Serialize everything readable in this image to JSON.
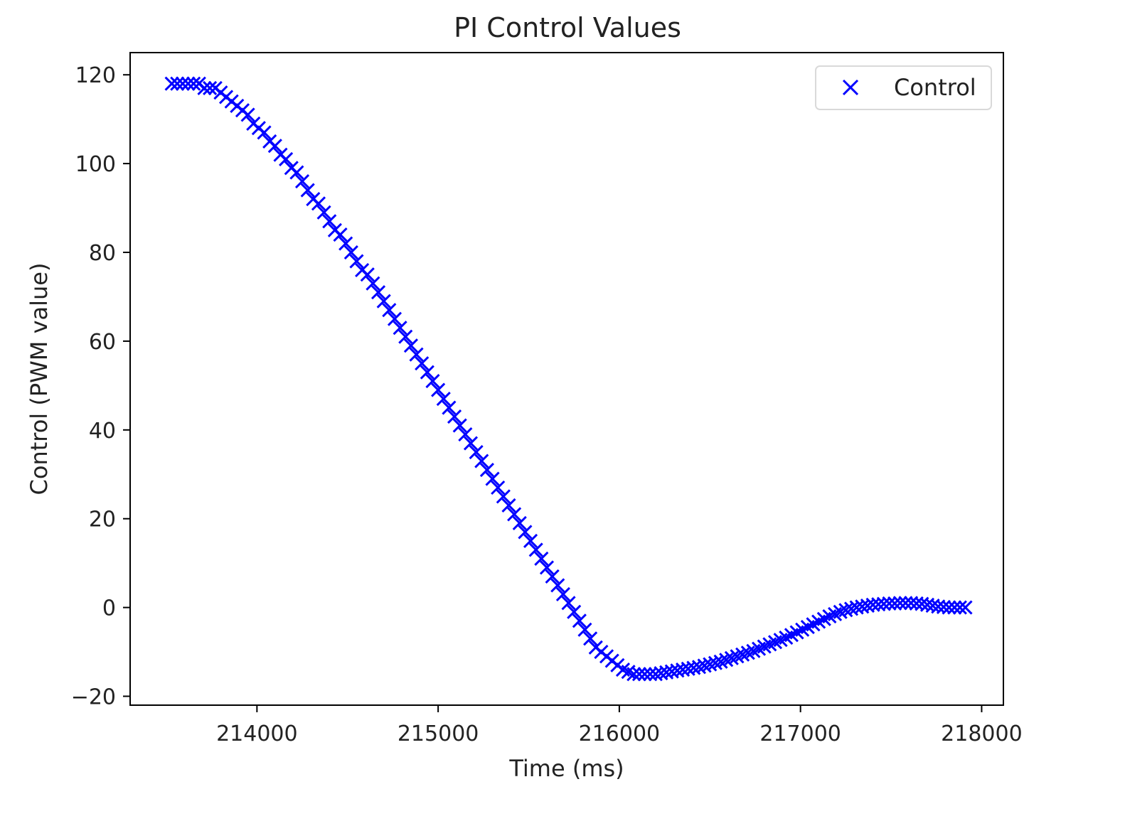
{
  "chart_data": {
    "type": "scatter",
    "title": "PI Control Values",
    "xlabel": "Time (ms)",
    "ylabel": "Control (PWM value)",
    "xlim": [
      213300,
      218120
    ],
    "ylim": [
      -22,
      125
    ],
    "x_ticks": [
      214000,
      215000,
      216000,
      217000,
      218000
    ],
    "y_ticks": [
      -20,
      0,
      20,
      40,
      60,
      80,
      100,
      120
    ],
    "x_tick_labels": [
      "214000",
      "215000",
      "216000",
      "217000",
      "218000"
    ],
    "y_tick_labels": [
      "−20",
      "0",
      "20",
      "40",
      "60",
      "80",
      "100",
      "120"
    ],
    "grid": false,
    "legend_position": "upper right",
    "series": [
      {
        "name": "Control",
        "marker": "x",
        "color": "#0000ff",
        "x": [
          213530,
          213560,
          213590,
          213620,
          213650,
          213680,
          213710,
          213740,
          213770,
          213800,
          213830,
          213860,
          213890,
          213920,
          213950,
          213980,
          214010,
          214040,
          214070,
          214100,
          214130,
          214160,
          214190,
          214220,
          214250,
          214280,
          214310,
          214340,
          214370,
          214400,
          214430,
          214460,
          214490,
          214520,
          214550,
          214580,
          214610,
          214640,
          214670,
          214700,
          214730,
          214760,
          214790,
          214820,
          214850,
          214880,
          214910,
          214940,
          214970,
          215000,
          215030,
          215060,
          215090,
          215120,
          215150,
          215180,
          215210,
          215240,
          215270,
          215300,
          215330,
          215360,
          215390,
          215420,
          215450,
          215480,
          215510,
          215540,
          215570,
          215600,
          215630,
          215660,
          215690,
          215720,
          215750,
          215780,
          215810,
          215840,
          215870,
          215900,
          215930,
          215960,
          215990,
          216020,
          216050,
          216080,
          216110,
          216140,
          216170,
          216200,
          216230,
          216260,
          216290,
          216320,
          216350,
          216380,
          216410,
          216440,
          216470,
          216500,
          216530,
          216560,
          216590,
          216620,
          216650,
          216680,
          216710,
          216740,
          216770,
          216800,
          216830,
          216860,
          216890,
          216920,
          216950,
          216980,
          217010,
          217040,
          217070,
          217100,
          217130,
          217160,
          217190,
          217220,
          217250,
          217280,
          217310,
          217340,
          217370,
          217400,
          217430,
          217460,
          217490,
          217520,
          217550,
          217580,
          217610,
          217640,
          217670,
          217700,
          217730,
          217760,
          217790,
          217820,
          217850,
          217880,
          217910
        ],
        "y": [
          118,
          118,
          118,
          118,
          118,
          118,
          117,
          117,
          117,
          116,
          115,
          114,
          113,
          112,
          111,
          109,
          108,
          107,
          105,
          104,
          102,
          101,
          99,
          98,
          96,
          94,
          92,
          91,
          89,
          87,
          85,
          84,
          82,
          80,
          78,
          76,
          75,
          73,
          71,
          69,
          67,
          65,
          63,
          61,
          59,
          57,
          55,
          53,
          51,
          49,
          47,
          45,
          43,
          41,
          39,
          37,
          35,
          33,
          31,
          29,
          27,
          25,
          23,
          21,
          19,
          17,
          15,
          13,
          11,
          9,
          7,
          5,
          3,
          1,
          -1,
          -3,
          -5,
          -7,
          -9,
          -10,
          -11,
          -12,
          -13,
          -14,
          -14.5,
          -15,
          -15,
          -15,
          -15,
          -15,
          -14.8,
          -14.6,
          -14.4,
          -14.2,
          -14,
          -13.8,
          -13.6,
          -13.4,
          -13.1,
          -12.8,
          -12.5,
          -12.2,
          -11.8,
          -11.4,
          -11,
          -10.6,
          -10.2,
          -9.8,
          -9.3,
          -8.8,
          -8.3,
          -7.8,
          -7.3,
          -6.8,
          -6.2,
          -5.6,
          -5,
          -4.4,
          -3.8,
          -3.2,
          -2.6,
          -2,
          -1.5,
          -1,
          -0.6,
          -0.3,
          0,
          0.2,
          0.4,
          0.6,
          0.7,
          0.8,
          0.9,
          0.9,
          1,
          1,
          1,
          0.9,
          0.8,
          0.6,
          0.4,
          0.2,
          0.1,
          0,
          0,
          0,
          0
        ]
      }
    ]
  },
  "colors": {
    "marker": "#0000ff",
    "axes": "#000000",
    "text": "#222222",
    "legend_border": "#d9d9d9"
  }
}
